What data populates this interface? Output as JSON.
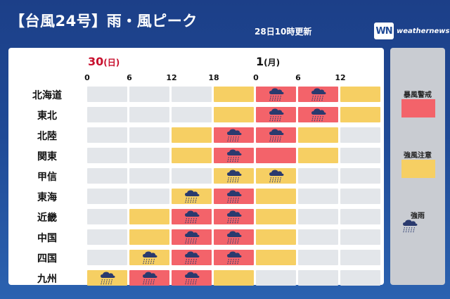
{
  "header": {
    "title": "【台風24号】雨・風ピーク",
    "updated": "28日10時更新",
    "logo_mark": "WN",
    "logo_text": "weathernews"
  },
  "days": [
    {
      "date": "30",
      "weekday": "(日)",
      "color": "#c8102e"
    },
    {
      "date": "1",
      "weekday": "(月)",
      "color": "#111111"
    }
  ],
  "hours": [
    "0",
    "6",
    "12",
    "18",
    "0",
    "6",
    "12"
  ],
  "colors": {
    "none": "#e3e6ea",
    "strong_wind": "#f6cf63",
    "storm_warning": "#f3636a",
    "rain_icon": "#2a3a6e"
  },
  "legend": {
    "storm_warning": "暴風警戒",
    "strong_wind": "強風注意",
    "heavy_rain": "強雨"
  },
  "regions": [
    {
      "name": "北海道",
      "cells": [
        "g",
        "g",
        "g",
        "y",
        "r",
        "r",
        "y"
      ],
      "rain": [
        0,
        0,
        0,
        0,
        1,
        1,
        0
      ]
    },
    {
      "name": "東北",
      "cells": [
        "g",
        "g",
        "g",
        "y",
        "r",
        "r",
        "y"
      ],
      "rain": [
        0,
        0,
        0,
        0,
        1,
        1,
        0
      ]
    },
    {
      "name": "北陸",
      "cells": [
        "g",
        "g",
        "y",
        "r",
        "r",
        "y",
        "g"
      ],
      "rain": [
        0,
        0,
        0,
        1,
        1,
        0,
        0
      ]
    },
    {
      "name": "関東",
      "cells": [
        "g",
        "g",
        "y",
        "r",
        "r",
        "y",
        "g"
      ],
      "rain": [
        0,
        0,
        0,
        1,
        0,
        0,
        0
      ]
    },
    {
      "name": "甲信",
      "cells": [
        "g",
        "g",
        "g",
        "y",
        "y",
        "g",
        "g"
      ],
      "rain": [
        0,
        0,
        0,
        1,
        1,
        0,
        0
      ]
    },
    {
      "name": "東海",
      "cells": [
        "g",
        "g",
        "y",
        "r",
        "y",
        "g",
        "g"
      ],
      "rain": [
        0,
        0,
        1,
        1,
        0,
        0,
        0
      ]
    },
    {
      "name": "近畿",
      "cells": [
        "g",
        "y",
        "r",
        "r",
        "y",
        "g",
        "g"
      ],
      "rain": [
        0,
        0,
        1,
        1,
        0,
        0,
        0
      ]
    },
    {
      "name": "中国",
      "cells": [
        "g",
        "y",
        "r",
        "r",
        "y",
        "g",
        "g"
      ],
      "rain": [
        0,
        0,
        1,
        1,
        0,
        0,
        0
      ]
    },
    {
      "name": "四国",
      "cells": [
        "g",
        "y",
        "r",
        "r",
        "y",
        "g",
        "g"
      ],
      "rain": [
        0,
        1,
        1,
        1,
        0,
        0,
        0
      ]
    },
    {
      "name": "九州",
      "cells": [
        "y",
        "r",
        "r",
        "y",
        "g",
        "g",
        "g"
      ],
      "rain": [
        1,
        1,
        1,
        0,
        0,
        0,
        0
      ]
    }
  ]
}
